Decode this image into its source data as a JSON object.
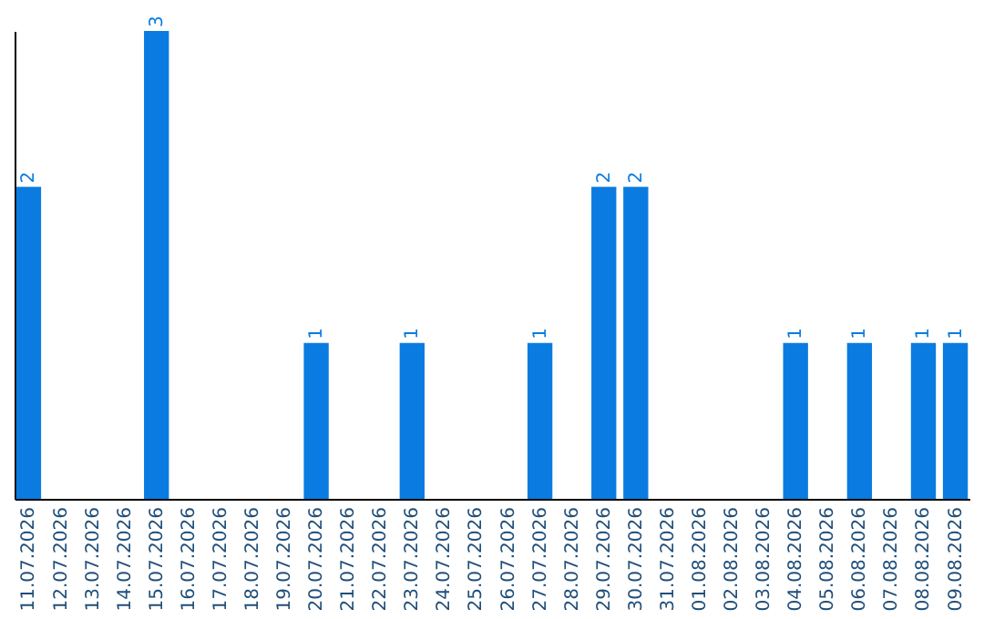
{
  "chart_data": {
    "type": "bar",
    "categories": [
      "11.07.2026",
      "12.07.2026",
      "13.07.2026",
      "14.07.2026",
      "15.07.2026",
      "16.07.2026",
      "17.07.2026",
      "18.07.2026",
      "19.07.2026",
      "20.07.2026",
      "21.07.2026",
      "22.07.2026",
      "23.07.2026",
      "24.07.2026",
      "25.07.2026",
      "26.07.2026",
      "27.07.2026",
      "28.07.2026",
      "29.07.2026",
      "30.07.2026",
      "31.07.2026",
      "01.08.2026",
      "02.08.2026",
      "03.08.2026",
      "04.08.2026",
      "05.08.2026",
      "06.08.2026",
      "07.08.2026",
      "08.08.2026",
      "09.08.2026"
    ],
    "values": [
      2,
      0,
      0,
      0,
      3,
      0,
      0,
      0,
      0,
      1,
      0,
      0,
      1,
      0,
      0,
      0,
      1,
      0,
      2,
      2,
      0,
      0,
      0,
      0,
      1,
      0,
      1,
      0,
      1,
      1
    ],
    "color": "#0a7be0",
    "value_labels": [
      "2",
      null,
      null,
      null,
      "3",
      null,
      null,
      null,
      null,
      "1",
      null,
      null,
      "1",
      null,
      null,
      null,
      "1",
      null,
      "2",
      "2",
      null,
      null,
      null,
      null,
      "1",
      null,
      "1",
      null,
      "1",
      "1"
    ],
    "grid": false,
    "tick_labels": "x"
  }
}
